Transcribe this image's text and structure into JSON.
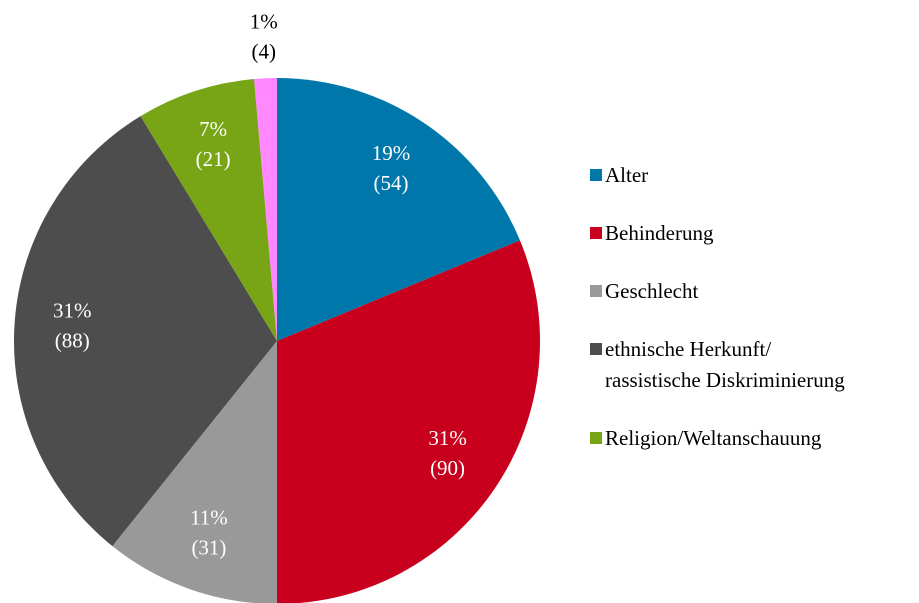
{
  "chart_data": {
    "type": "pie",
    "categories": [
      "Alter",
      "Behinderung",
      "Geschlecht",
      "ethnische Herkunft/\nrassistische Diskriminierung",
      "Religion/Weltanschauung",
      null
    ],
    "values": [
      54,
      90,
      31,
      88,
      21,
      4
    ],
    "value_labels": [
      "(54)",
      "(90)",
      "(31)",
      "(88)",
      "(21)",
      "(4)"
    ],
    "percent_labels": [
      "19%",
      "31%",
      "11%",
      "31%",
      "7%",
      "1%"
    ],
    "colors": [
      "#0077aa",
      "#c8001e",
      "#999999",
      "#4d4d4d",
      "#77a515",
      "#ff88ff"
    ],
    "legend": "right"
  }
}
